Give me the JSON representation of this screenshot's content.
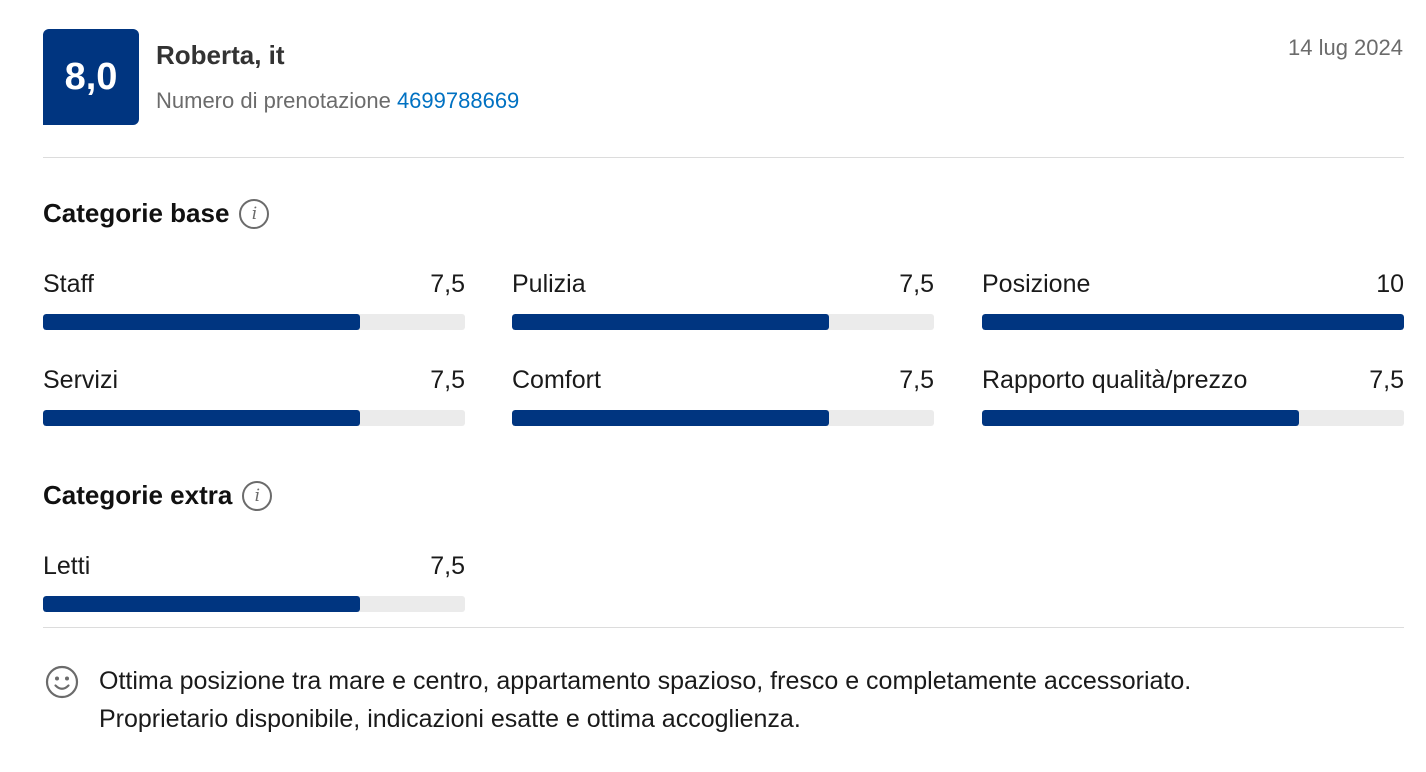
{
  "review": {
    "score": "8,0",
    "reviewer": "Roberta, it",
    "booking_label": "Numero di prenotazione",
    "booking_number": "4699788669",
    "date": "14 lug 2024"
  },
  "base_section": {
    "title": "Categorie base",
    "icon": "info-icon",
    "categories": [
      {
        "label": "Staff",
        "score": "7,5",
        "value": 7.5
      },
      {
        "label": "Pulizia",
        "score": "7,5",
        "value": 7.5
      },
      {
        "label": "Posizione",
        "score": "10",
        "value": 10
      },
      {
        "label": "Servizi",
        "score": "7,5",
        "value": 7.5
      },
      {
        "label": "Comfort",
        "score": "7,5",
        "value": 7.5
      },
      {
        "label": "Rapporto qualità/prezzo",
        "score": "7,5",
        "value": 7.5
      }
    ]
  },
  "extra_section": {
    "title": "Categorie extra",
    "icon": "info-icon",
    "categories": [
      {
        "label": "Letti",
        "score": "7,5",
        "value": 7.5
      }
    ]
  },
  "comment": {
    "icon": "smiley-icon",
    "text_line1": "Ottima posizione tra mare e centro, appartamento spazioso, fresco e completamente accessoriato.",
    "text_line2": "Proprietario disponibile, indicazioni esatte e ottima accoglienza."
  },
  "colors": {
    "brand": "#003580",
    "link": "#0071c2",
    "track": "#ebebeb"
  }
}
